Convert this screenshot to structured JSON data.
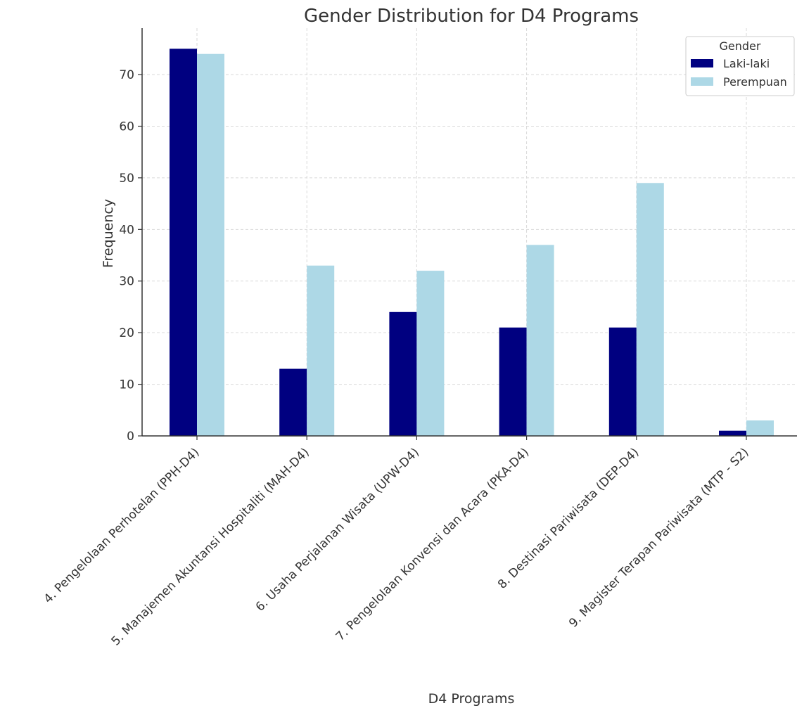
{
  "chart_data": {
    "type": "bar",
    "title": "Gender Distribution for D4 Programs",
    "xlabel": "D4 Programs",
    "ylabel": "Frequency",
    "ylim": [
      0,
      79
    ],
    "yticks": [
      0,
      10,
      20,
      30,
      40,
      50,
      60,
      70
    ],
    "grid": true,
    "categories": [
      "4. Pengelolaan Perhotelan (PPH-D4)",
      "5. Manajemen Akuntansi Hospitaliti (MAH-D4)",
      "6. Usaha Perjalanan Wisata (UPW-D4)",
      "7. Pengelolaan Konvensi dan Acara (PKA-D4)",
      "8. Destinasi Pariwisata (DEP-D4)",
      "9. Magister Terapan Pariwisata (MTP - S2)"
    ],
    "series": [
      {
        "name": "Laki-laki",
        "color": "#000080",
        "values": [
          75,
          13,
          24,
          21,
          21,
          1
        ]
      },
      {
        "name": "Perempuan",
        "color": "#add8e6",
        "values": [
          74,
          33,
          32,
          37,
          49,
          3
        ]
      }
    ],
    "legend": {
      "title": "Gender",
      "placement": "top-right"
    }
  }
}
